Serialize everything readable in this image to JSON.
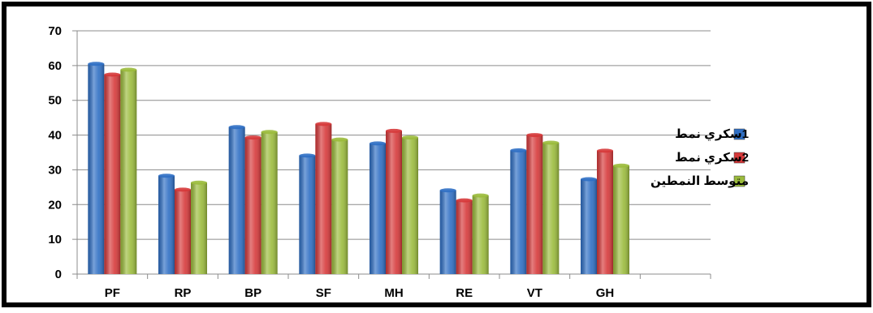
{
  "chart_data": {
    "type": "bar",
    "categories": [
      "PF",
      "RP",
      "BP",
      "SF",
      "MH",
      "RE",
      "VT",
      "GH"
    ],
    "series": [
      {
        "name": "1سكري نمط",
        "color": "#2F6FC4",
        "values": [
          60.5,
          28.3,
          42.3,
          34.1,
          37.6,
          24.1,
          35.6,
          27.3
        ]
      },
      {
        "name": "2سكري نمط",
        "color": "#D6393A",
        "values": [
          57.4,
          24.3,
          39.3,
          43.2,
          41.2,
          21.2,
          40.0,
          35.5
        ]
      },
      {
        "name": "متوسط النمطين",
        "color": "#9BBB3C",
        "values": [
          58.8,
          26.3,
          40.9,
          38.7,
          39.3,
          22.6,
          37.8,
          31.2
        ]
      }
    ],
    "ylim": [
      0,
      70
    ],
    "yticks": [
      "0",
      "10",
      "20",
      "30",
      "40",
      "50",
      "60",
      "70"
    ],
    "grid": true,
    "legend": "right",
    "title": "",
    "xlabel": "",
    "ylabel": ""
  }
}
